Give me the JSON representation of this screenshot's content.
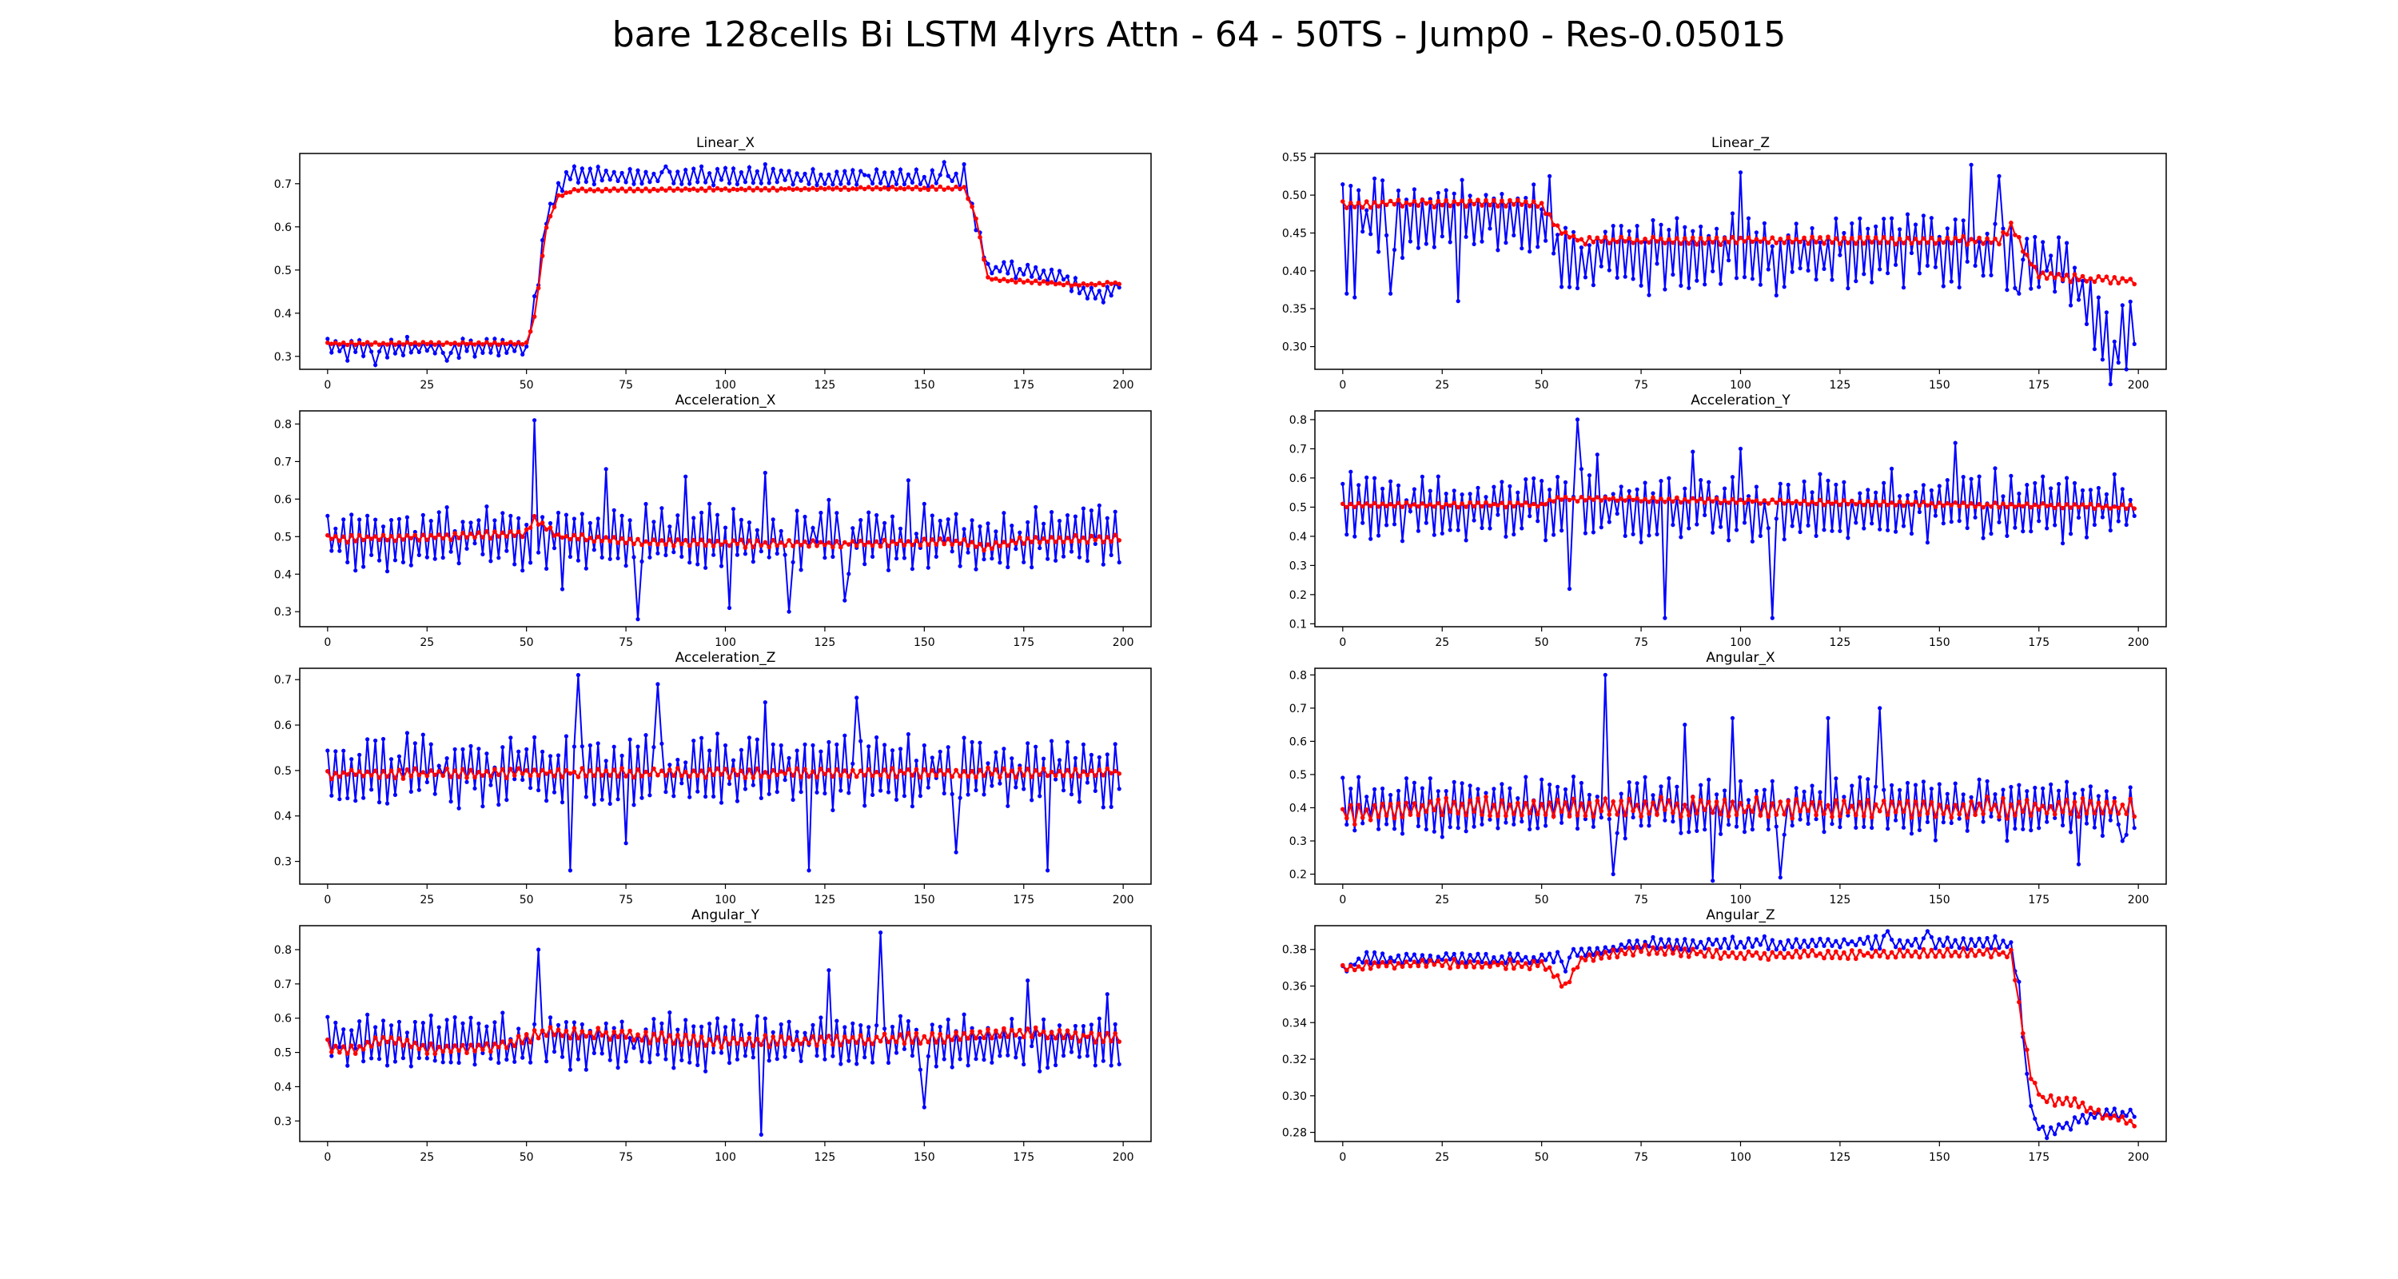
{
  "figure": {
    "title": "bare 128cells Bi LSTM 4lyrs Attn - 64 - 50TS - Jump0 - Res-0.05015"
  },
  "colors": {
    "actual": "#0000ff",
    "predicted": "#ff0000",
    "axis": "#000000",
    "text": "#000000"
  },
  "chart_data": [
    {
      "type": "line",
      "title": "Linear_X",
      "xlim": [
        -7,
        207
      ],
      "ylim": [
        0.27,
        0.77
      ],
      "xticks": [
        0,
        25,
        50,
        75,
        100,
        125,
        150,
        175,
        200
      ],
      "yticks": [
        0.3,
        0.4,
        0.5,
        0.6,
        0.7
      ],
      "grid": false,
      "x": "range:0-199",
      "series": [
        {
          "color": "#0000ff",
          "anchors": [
            [
              0,
              0.32
            ],
            [
              50,
              0.32
            ],
            [
              52,
              0.42
            ],
            [
              55,
              0.62
            ],
            [
              58,
              0.69
            ],
            [
              60,
              0.72
            ],
            [
              160,
              0.71
            ],
            [
              163,
              0.6
            ],
            [
              166,
              0.5
            ],
            [
              175,
              0.5
            ],
            [
              185,
              0.48
            ],
            [
              190,
              0.45
            ],
            [
              195,
              0.44
            ],
            [
              199,
              0.47
            ]
          ],
          "amp": 0.025,
          "spikes": [
            [
              5,
              0.29
            ],
            [
              12,
              0.28
            ],
            [
              20,
              0.345
            ],
            [
              30,
              0.29
            ],
            [
              40,
              0.34
            ],
            [
              62,
              0.74
            ],
            [
              85,
              0.74
            ],
            [
              110,
              0.745
            ],
            [
              135,
              0.72
            ],
            [
              155,
              0.75
            ],
            [
              160,
              0.745
            ]
          ]
        },
        {
          "color": "#ff0000",
          "anchors": [
            [
              0,
              0.33
            ],
            [
              50,
              0.33
            ],
            [
              52,
              0.39
            ],
            [
              55,
              0.6
            ],
            [
              58,
              0.67
            ],
            [
              62,
              0.685
            ],
            [
              160,
              0.69
            ],
            [
              163,
              0.62
            ],
            [
              166,
              0.48
            ],
            [
              172,
              0.475
            ],
            [
              190,
              0.465
            ],
            [
              199,
              0.47
            ]
          ],
          "amp": 0.004,
          "spikes": []
        }
      ]
    },
    {
      "type": "line",
      "title": "Linear_Z",
      "xlim": [
        -7,
        207
      ],
      "ylim": [
        0.27,
        0.555
      ],
      "xticks": [
        0,
        25,
        50,
        75,
        100,
        125,
        150,
        175,
        200
      ],
      "yticks": [
        0.3,
        0.35,
        0.4,
        0.45,
        0.5,
        0.55
      ],
      "grid": false,
      "x": "range:0-199",
      "series": [
        {
          "color": "#0000ff",
          "anchors": [
            [
              0,
              0.47
            ],
            [
              48,
              0.47
            ],
            [
              52,
              0.44
            ],
            [
              55,
              0.42
            ],
            [
              170,
              0.43
            ],
            [
              172,
              0.41
            ],
            [
              180,
              0.41
            ],
            [
              185,
              0.38
            ],
            [
              190,
              0.33
            ],
            [
              194,
              0.285
            ],
            [
              197,
              0.3
            ],
            [
              199,
              0.335
            ]
          ],
          "amp": 0.06,
          "spikes": [
            [
              1,
              0.37
            ],
            [
              3,
              0.365
            ],
            [
              12,
              0.37
            ],
            [
              29,
              0.36
            ],
            [
              52,
              0.525
            ],
            [
              100,
              0.53
            ],
            [
              158,
              0.54
            ],
            [
              165,
              0.525
            ],
            [
              170,
              0.37
            ]
          ]
        },
        {
          "color": "#ff0000",
          "anchors": [
            [
              0,
              0.487
            ],
            [
              25,
              0.49
            ],
            [
              45,
              0.49
            ],
            [
              50,
              0.487
            ],
            [
              55,
              0.45
            ],
            [
              60,
              0.44
            ],
            [
              165,
              0.44
            ],
            [
              168,
              0.46
            ],
            [
              172,
              0.42
            ],
            [
              175,
              0.395
            ],
            [
              185,
              0.39
            ],
            [
              199,
              0.387
            ]
          ],
          "amp": 0.006,
          "spikes": []
        }
      ]
    },
    {
      "type": "line",
      "title": "Acceleration_X",
      "xlim": [
        -7,
        207
      ],
      "ylim": [
        0.26,
        0.835
      ],
      "xticks": [
        0,
        25,
        50,
        75,
        100,
        125,
        150,
        175,
        200
      ],
      "yticks": [
        0.3,
        0.4,
        0.5,
        0.6,
        0.7,
        0.8
      ],
      "grid": false,
      "x": "range:0-199",
      "series": [
        {
          "color": "#0000ff",
          "anchors": [
            [
              0,
              0.49
            ],
            [
              50,
              0.5
            ],
            [
              199,
              0.5
            ]
          ],
          "amp": 0.1,
          "spikes": [
            [
              52,
              0.81
            ],
            [
              59,
              0.36
            ],
            [
              70,
              0.68
            ],
            [
              78,
              0.28
            ],
            [
              90,
              0.66
            ],
            [
              101,
              0.31
            ],
            [
              110,
              0.67
            ],
            [
              116,
              0.3
            ],
            [
              130,
              0.33
            ],
            [
              146,
              0.65
            ]
          ]
        },
        {
          "color": "#ff0000",
          "anchors": [
            [
              0,
              0.495
            ],
            [
              30,
              0.5
            ],
            [
              50,
              0.51
            ],
            [
              52,
              0.545
            ],
            [
              58,
              0.5
            ],
            [
              80,
              0.485
            ],
            [
              120,
              0.48
            ],
            [
              160,
              0.485
            ],
            [
              165,
              0.47
            ],
            [
              175,
              0.49
            ],
            [
              199,
              0.495
            ]
          ],
          "amp": 0.012,
          "spikes": []
        }
      ]
    },
    {
      "type": "line",
      "title": "Acceleration_Y",
      "xlim": [
        -7,
        207
      ],
      "ylim": [
        0.09,
        0.83
      ],
      "xticks": [
        0,
        25,
        50,
        75,
        100,
        125,
        150,
        175,
        200
      ],
      "yticks": [
        0.1,
        0.2,
        0.3,
        0.4,
        0.5,
        0.6,
        0.7,
        0.8
      ],
      "grid": false,
      "x": "range:0-199",
      "series": [
        {
          "color": "#0000ff",
          "anchors": [
            [
              0,
              0.5
            ],
            [
              199,
              0.5
            ]
          ],
          "amp": 0.14,
          "spikes": [
            [
              57,
              0.22
            ],
            [
              59,
              0.8
            ],
            [
              64,
              0.68
            ],
            [
              81,
              0.12
            ],
            [
              88,
              0.69
            ],
            [
              100,
              0.7
            ],
            [
              108,
              0.12
            ],
            [
              154,
              0.72
            ],
            [
              199,
              0.47
            ]
          ]
        },
        {
          "color": "#ff0000",
          "anchors": [
            [
              0,
              0.505
            ],
            [
              50,
              0.51
            ],
            [
              55,
              0.53
            ],
            [
              100,
              0.52
            ],
            [
              150,
              0.51
            ],
            [
              199,
              0.5
            ]
          ],
          "amp": 0.01,
          "spikes": []
        }
      ]
    },
    {
      "type": "line",
      "title": "Acceleration_Z",
      "xlim": [
        -7,
        207
      ],
      "ylim": [
        0.25,
        0.725
      ],
      "xticks": [
        0,
        25,
        50,
        75,
        100,
        125,
        150,
        175,
        200
      ],
      "yticks": [
        0.3,
        0.4,
        0.5,
        0.6,
        0.7
      ],
      "grid": false,
      "x": "range:0-199",
      "series": [
        {
          "color": "#0000ff",
          "anchors": [
            [
              0,
              0.5
            ],
            [
              199,
              0.5
            ]
          ],
          "amp": 0.09,
          "spikes": [
            [
              61,
              0.28
            ],
            [
              63,
              0.71
            ],
            [
              75,
              0.34
            ],
            [
              83,
              0.69
            ],
            [
              110,
              0.65
            ],
            [
              121,
              0.28
            ],
            [
              133,
              0.66
            ],
            [
              158,
              0.32
            ],
            [
              181,
              0.28
            ],
            [
              197,
              0.42
            ]
          ]
        },
        {
          "color": "#ff0000",
          "anchors": [
            [
              0,
              0.492
            ],
            [
              50,
              0.495
            ],
            [
              199,
              0.495
            ]
          ],
          "amp": 0.012,
          "spikes": []
        }
      ]
    },
    {
      "type": "line",
      "title": "Angular_X",
      "xlim": [
        -7,
        207
      ],
      "ylim": [
        0.17,
        0.82
      ],
      "xticks": [
        0,
        25,
        50,
        75,
        100,
        125,
        150,
        175,
        200
      ],
      "yticks": [
        0.2,
        0.3,
        0.4,
        0.5,
        0.6,
        0.7,
        0.8
      ],
      "grid": false,
      "x": "range:0-199",
      "series": [
        {
          "color": "#0000ff",
          "anchors": [
            [
              0,
              0.4
            ],
            [
              199,
              0.4
            ]
          ],
          "amp": 0.1,
          "spikes": [
            [
              66,
              0.8
            ],
            [
              68,
              0.2
            ],
            [
              86,
              0.65
            ],
            [
              93,
              0.18
            ],
            [
              98,
              0.67
            ],
            [
              110,
              0.19
            ],
            [
              122,
              0.67
            ],
            [
              135,
              0.7
            ],
            [
              185,
              0.23
            ],
            [
              196,
              0.3
            ]
          ]
        },
        {
          "color": "#ff0000",
          "anchors": [
            [
              0,
              0.38
            ],
            [
              30,
              0.4
            ],
            [
              199,
              0.4
            ]
          ],
          "amp": 0.035,
          "spikes": []
        }
      ]
    },
    {
      "type": "line",
      "title": "Angular_Y",
      "xlim": [
        -7,
        207
      ],
      "ylim": [
        0.24,
        0.87
      ],
      "xticks": [
        0,
        25,
        50,
        75,
        100,
        125,
        150,
        175,
        200
      ],
      "yticks": [
        0.3,
        0.4,
        0.5,
        0.6,
        0.7,
        0.8
      ],
      "grid": false,
      "x": "range:0-199",
      "series": [
        {
          "color": "#0000ff",
          "anchors": [
            [
              0,
              0.53
            ],
            [
              199,
              0.53
            ]
          ],
          "amp": 0.09,
          "spikes": [
            [
              53,
              0.8
            ],
            [
              109,
              0.26
            ],
            [
              139,
              0.85
            ],
            [
              126,
              0.74
            ],
            [
              150,
              0.34
            ],
            [
              176,
              0.71
            ],
            [
              196,
              0.67
            ]
          ]
        },
        {
          "color": "#ff0000",
          "anchors": [
            [
              0,
              0.52
            ],
            [
              5,
              0.5
            ],
            [
              15,
              0.54
            ],
            [
              25,
              0.51
            ],
            [
              45,
              0.52
            ],
            [
              55,
              0.56
            ],
            [
              75,
              0.55
            ],
            [
              100,
              0.53
            ],
            [
              150,
              0.54
            ],
            [
              175,
              0.56
            ],
            [
              199,
              0.54
            ]
          ],
          "amp": 0.02,
          "spikes": []
        }
      ]
    },
    {
      "type": "line",
      "title": "Angular_Z",
      "xlim": [
        -7,
        207
      ],
      "ylim": [
        0.275,
        0.393
      ],
      "xticks": [
        0,
        25,
        50,
        75,
        100,
        125,
        150,
        175,
        200
      ],
      "yticks": [
        0.28,
        0.3,
        0.32,
        0.34,
        0.36,
        0.38
      ],
      "grid": false,
      "x": "range:0-199",
      "series": [
        {
          "color": "#0000ff",
          "anchors": [
            [
              0,
              0.368
            ],
            [
              5,
              0.375
            ],
            [
              50,
              0.375
            ],
            [
              75,
              0.383
            ],
            [
              165,
              0.384
            ],
            [
              168,
              0.382
            ],
            [
              170,
              0.36
            ],
            [
              172,
              0.31
            ],
            [
              174,
              0.285
            ],
            [
              177,
              0.28
            ],
            [
              190,
              0.29
            ],
            [
              199,
              0.29
            ]
          ],
          "amp": 0.004,
          "spikes": [
            [
              56,
              0.368
            ],
            [
              137,
              0.39
            ],
            [
              147,
              0.39
            ]
          ]
        },
        {
          "color": "#ff0000",
          "anchors": [
            [
              0,
              0.369
            ],
            [
              10,
              0.372
            ],
            [
              50,
              0.372
            ],
            [
              56,
              0.36
            ],
            [
              60,
              0.375
            ],
            [
              75,
              0.38
            ],
            [
              100,
              0.377
            ],
            [
              160,
              0.378
            ],
            [
              168,
              0.378
            ],
            [
              170,
              0.35
            ],
            [
              173,
              0.31
            ],
            [
              176,
              0.298
            ],
            [
              185,
              0.296
            ],
            [
              190,
              0.29
            ],
            [
              199,
              0.285
            ]
          ],
          "amp": 0.003,
          "spikes": []
        }
      ]
    }
  ]
}
